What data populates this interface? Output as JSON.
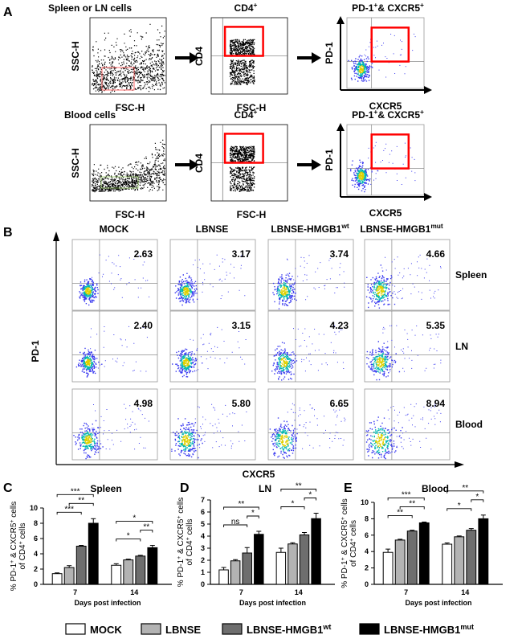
{
  "panel_labels": {
    "A": "A",
    "B": "B",
    "C": "C",
    "D": "D",
    "E": "E"
  },
  "panel_a": {
    "row1": {
      "title1": "Spleen or LN cells",
      "title2": "CD4",
      "title3": "PD-1",
      "title3b": "& CXCR5",
      "sup": "+",
      "ylab1": "SSC-H",
      "xlab1": "FSC-H",
      "ylab2": "CD4",
      "xlab2": "FSC-H",
      "ylab3": "PD-1",
      "xlab3": "CXCR5"
    },
    "row2": {
      "title1": "Blood cells",
      "title2": "CD4",
      "title3": "PD-1",
      "title3b": "& CXCR5",
      "sup": "+",
      "ylab1": "SSC-H",
      "xlab1": "FSC-H",
      "ylab2": "CD4",
      "xlab2": "FSC-H",
      "ylab3": "PD-1",
      "xlab3": "CXCR5"
    }
  },
  "panel_b": {
    "columns": [
      {
        "label": "MOCK",
        "sup": ""
      },
      {
        "label": "LBNSE",
        "sup": ""
      },
      {
        "label": "LBNSE-HMGB1",
        "sup": "wt"
      },
      {
        "label": "LBNSE-HMGB1",
        "sup": "mut"
      }
    ],
    "rows": [
      "Spleen",
      "LN",
      "Blood"
    ],
    "values": [
      [
        "2.63",
        "3.17",
        "3.74",
        "4.66"
      ],
      [
        "2.40",
        "3.15",
        "4.23",
        "5.35"
      ],
      [
        "4.98",
        "5.80",
        "6.65",
        "8.94"
      ]
    ],
    "ylabel": "PD-1",
    "xlabel": "CXCR5"
  },
  "chart_data": [
    {
      "type": "bar",
      "title": "Spleen",
      "categories": [
        "7",
        "14"
      ],
      "xlabel": "Days post infection",
      "ylabel_parts": [
        "% PD-1",
        "+",
        " & CXCR5",
        "+",
        " cells"
      ],
      "ylabel2_parts": [
        "of CD4",
        "+",
        " cells"
      ],
      "ylim": [
        0,
        10
      ],
      "yticks": [
        0,
        2,
        4,
        6,
        8,
        10
      ],
      "series": [
        {
          "name": "MOCK",
          "values": [
            1.4,
            2.5
          ],
          "errors": [
            0.1,
            0.2
          ]
        },
        {
          "name": "LBNSE",
          "values": [
            2.2,
            3.2
          ],
          "errors": [
            0.25,
            0.1
          ]
        },
        {
          "name": "LBNSE-HMGB1wt",
          "values": [
            5.0,
            3.7
          ],
          "errors": [
            0.1,
            0.1
          ]
        },
        {
          "name": "LBNSE-HMGB1mut",
          "values": [
            8.0,
            4.8
          ],
          "errors": [
            0.6,
            0.3
          ]
        }
      ],
      "annotations": [
        {
          "group": 0,
          "from": 0,
          "to": 3,
          "level": 3,
          "text": "***"
        },
        {
          "group": 0,
          "from": 1,
          "to": 3,
          "level": 2,
          "text": "**"
        },
        {
          "group": 0,
          "from": 0,
          "to": 2,
          "level": 1,
          "text": "***"
        },
        {
          "group": 1,
          "from": 0,
          "to": 3,
          "level": 3,
          "text": "*"
        },
        {
          "group": 1,
          "from": 2,
          "to": 3,
          "level": 2,
          "text": "**"
        },
        {
          "group": 1,
          "from": 0,
          "to": 2,
          "level": 1,
          "text": "*"
        }
      ]
    },
    {
      "type": "bar",
      "title": "LN",
      "categories": [
        "7",
        "14"
      ],
      "xlabel": "Days post infection",
      "ylabel_parts": [
        "% PD-1",
        "+",
        " & CXCR5",
        "+",
        " cells"
      ],
      "ylabel2_parts": [
        "of CD4",
        "+",
        " cells"
      ],
      "ylim": [
        0,
        7
      ],
      "yticks": [
        0,
        1,
        2,
        3,
        4,
        5,
        6,
        7
      ],
      "series": [
        {
          "name": "MOCK",
          "values": [
            1.2,
            2.65
          ],
          "errors": [
            0.2,
            0.35
          ]
        },
        {
          "name": "LBNSE",
          "values": [
            1.95,
            3.35
          ],
          "errors": [
            0.1,
            0.1
          ]
        },
        {
          "name": "LBNSE-HMGB1wt",
          "values": [
            2.6,
            4.1
          ],
          "errors": [
            0.45,
            0.2
          ]
        },
        {
          "name": "LBNSE-HMGB1mut",
          "values": [
            4.15,
            5.45
          ],
          "errors": [
            0.25,
            0.45
          ]
        }
      ],
      "annotations": [
        {
          "group": 0,
          "from": 0,
          "to": 3,
          "level": 3,
          "text": "**"
        },
        {
          "group": 0,
          "from": 2,
          "to": 3,
          "level": 2,
          "text": "*"
        },
        {
          "group": 0,
          "from": 0,
          "to": 2,
          "level": 1,
          "text": "ns"
        },
        {
          "group": 1,
          "from": 0,
          "to": 3,
          "level": 3,
          "text": "**"
        },
        {
          "group": 1,
          "from": 2,
          "to": 3,
          "level": 2,
          "text": "*"
        },
        {
          "group": 1,
          "from": 0,
          "to": 2,
          "level": 1,
          "text": "*"
        }
      ]
    },
    {
      "type": "bar",
      "title": "Blood",
      "categories": [
        "7",
        "14"
      ],
      "xlabel": "Days post infection",
      "ylabel_parts": [
        "% PD-1",
        "+",
        " & CXCR5",
        "+",
        " cells"
      ],
      "ylabel2_parts": [
        "of CD4",
        "+",
        " cells"
      ],
      "ylim": [
        0,
        10
      ],
      "yticks": [
        0,
        2,
        4,
        6,
        8,
        10
      ],
      "series": [
        {
          "name": "MOCK",
          "values": [
            3.9,
            4.9
          ],
          "errors": [
            0.4,
            0.15
          ]
        },
        {
          "name": "LBNSE",
          "values": [
            5.4,
            5.8
          ],
          "errors": [
            0.1,
            0.1
          ]
        },
        {
          "name": "LBNSE-HMGB1wt",
          "values": [
            6.5,
            6.6
          ],
          "errors": [
            0.1,
            0.2
          ]
        },
        {
          "name": "LBNSE-HMGB1mut",
          "values": [
            7.5,
            8.0
          ],
          "errors": [
            0.1,
            0.45
          ]
        }
      ],
      "annotations": [
        {
          "group": 0,
          "from": 0,
          "to": 3,
          "level": 3,
          "text": "***"
        },
        {
          "group": 0,
          "from": 1,
          "to": 3,
          "level": 2,
          "text": "**"
        },
        {
          "group": 0,
          "from": 0,
          "to": 2,
          "level": 1,
          "text": "**"
        },
        {
          "group": 1,
          "from": 0,
          "to": 3,
          "level": 3,
          "text": "**"
        },
        {
          "group": 1,
          "from": 2,
          "to": 3,
          "level": 2,
          "text": "*"
        },
        {
          "group": 1,
          "from": 0,
          "to": 2,
          "level": 1,
          "text": "*"
        }
      ]
    }
  ],
  "legend": [
    {
      "label": "MOCK",
      "sup": "",
      "color": "#ffffff"
    },
    {
      "label": "LBNSE",
      "sup": "",
      "color": "#b3b3b3"
    },
    {
      "label": "LBNSE-HMGB1",
      "sup": "wt",
      "color": "#6e6e6e"
    },
    {
      "label": "LBNSE-HMGB1",
      "sup": "mut",
      "color": "#000000"
    }
  ],
  "colors": {
    "gate": "#ff0000",
    "dots": "#0000ff",
    "dense": "#000000"
  }
}
